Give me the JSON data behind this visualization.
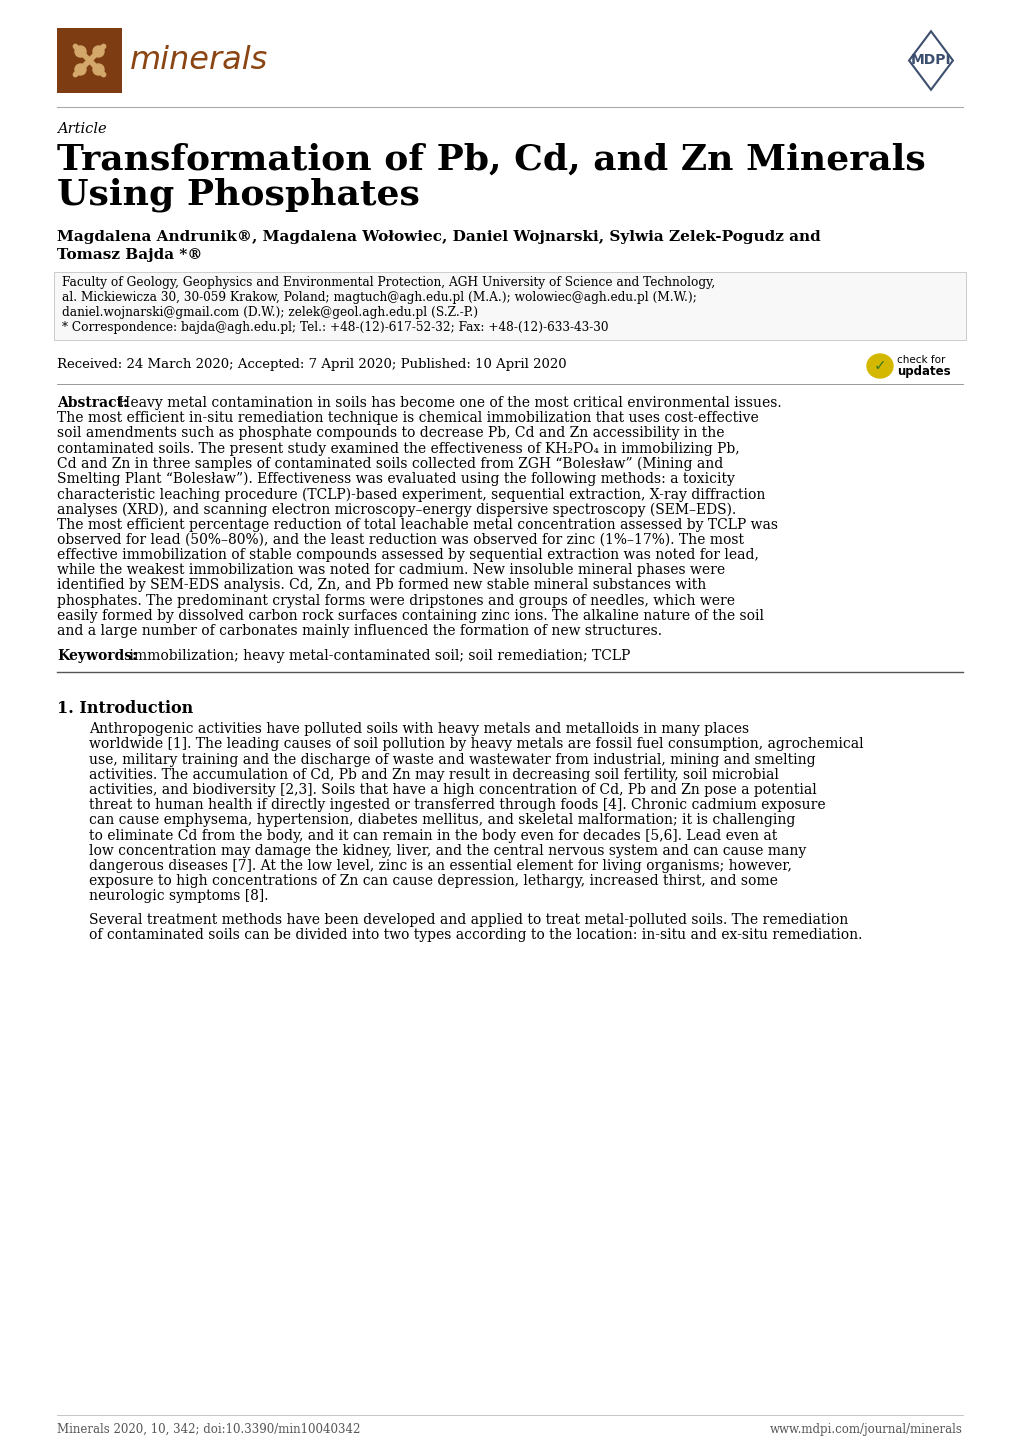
{
  "page_bg": "#ffffff",
  "lm": 57,
  "rm": 963,
  "title_line1": "Transformation of Pb, Cd, and Zn Minerals",
  "title_line2": "Using Phosphates",
  "article_label": "Article",
  "author_line1": "Magdalena Andrunik®, Magdalena Wołowiec, Daniel Wojnarski, Sylwia Zelek-Pogudz and",
  "author_line2": "Tomasz Bajda *®",
  "affiliation_lines": [
    "Faculty of Geology, Geophysics and Environmental Protection, AGH University of Science and Technology,",
    "al. Mickiewicza 30, 30-059 Krakow, Poland; magtuch@agh.edu.pl (M.A.); wolowiec@agh.edu.pl (M.W.);",
    "daniel.wojnarski@gmail.com (D.W.); zelek@geol.agh.edu.pl (S.Z.-P.)",
    "* Correspondence: bajda@agh.edu.pl; Tel.: +48-(12)-617-52-32; Fax: +48-(12)-633-43-30"
  ],
  "dates_line": "Received: 24 March 2020; Accepted: 7 April 2020; Published: 10 April 2020",
  "abstract_bold": "Abstract:",
  "abstract_rest": " Heavy metal contamination in soils has become one of the most critical environmental issues. The most efficient in-situ remediation technique is chemical immobilization that uses cost-effective soil amendments such as phosphate compounds to decrease Pb, Cd and Zn accessibility in the contaminated soils. The present study examined the effectiveness of KH₂PO₄ in immobilizing Pb, Cd and Zn in three samples of contaminated soils collected from ZGH “Bolesław” (Mining and Smelting Plant “Bolesław”). Effectiveness was evaluated using the following methods: a toxicity characteristic leaching procedure (TCLP)-based experiment, sequential extraction, X-ray diffraction analyses (XRD), and scanning electron microscopy–energy dispersive spectroscopy (SEM–EDS). The most efficient percentage reduction of total leachable metal concentration assessed by TCLP was observed for lead (50%–80%), and the least reduction was observed for zinc (1%–17%). The most effective immobilization of stable compounds assessed by sequential extraction was noted for lead, while the weakest immobilization was noted for cadmium. New insoluble mineral phases were identified by SEM-EDS analysis. Cd, Zn, and Pb formed new stable mineral substances with phosphates. The predominant crystal forms were dripstones and groups of needles, which were easily formed by dissolved carbon rock surfaces containing zinc ions. The alkaline nature of the soil and a large number of carbonates mainly influenced the formation of new structures.",
  "abstract_lines": [
    "Abstract: Heavy metal contamination in soils has become one of the most critical environmental issues.",
    "The most efficient in-situ remediation technique is chemical immobilization that uses cost-effective",
    "soil amendments such as phosphate compounds to decrease Pb, Cd and Zn accessibility in the",
    "contaminated soils. The present study examined the effectiveness of KH₂PO₄ in immobilizing Pb,",
    "Cd and Zn in three samples of contaminated soils collected from ZGH “Bolesław” (Mining and",
    "Smelting Plant “Bolesław”). Effectiveness was evaluated using the following methods: a toxicity",
    "characteristic leaching procedure (TCLP)-based experiment, sequential extraction, X-ray diffraction",
    "analyses (XRD), and scanning electron microscopy–energy dispersive spectroscopy (SEM–EDS).",
    "The most efficient percentage reduction of total leachable metal concentration assessed by TCLP was",
    "observed for lead (50%–80%), and the least reduction was observed for zinc (1%–17%). The most",
    "effective immobilization of stable compounds assessed by sequential extraction was noted for lead,",
    "while the weakest immobilization was noted for cadmium. New insoluble mineral phases were",
    "identified by SEM-EDS analysis. Cd, Zn, and Pb formed new stable mineral substances with",
    "phosphates. The predominant crystal forms were dripstones and groups of needles, which were",
    "easily formed by dissolved carbon rock surfaces containing zinc ions. The alkaline nature of the soil",
    "and a large number of carbonates mainly influenced the formation of new structures."
  ],
  "keywords_bold": "Keywords:",
  "keywords_rest": " immobilization; heavy metal-contaminated soil; soil remediation; TCLP",
  "section_title": "1. Introduction",
  "intro1_lines": [
    "Anthropogenic activities have polluted soils with heavy metals and metalloids in many places",
    "worldwide [1]. The leading causes of soil pollution by heavy metals are fossil fuel consumption, agrochemical",
    "use, military training and the discharge of waste and wastewater from industrial, mining and smelting",
    "activities. The accumulation of Cd, Pb and Zn may result in decreasing soil fertility, soil microbial",
    "activities, and biodiversity [2,3]. Soils that have a high concentration of Cd, Pb and Zn pose a potential",
    "threat to human health if directly ingested or transferred through foods [4]. Chronic cadmium exposure",
    "can cause emphysema, hypertension, diabetes mellitus, and skeletal malformation; it is challenging",
    "to eliminate Cd from the body, and it can remain in the body even for decades [5,6]. Lead even at",
    "low concentration may damage the kidney, liver, and the central nervous system and can cause many",
    "dangerous diseases [7]. At the low level, zinc is an essential element for living organisms; however,",
    "exposure to high concentrations of Zn can cause depression, lethargy, increased thirst, and some",
    "neurologic symptoms [8]."
  ],
  "intro2_lines": [
    "Several treatment methods have been developed and applied to treat metal-polluted soils. The remediation",
    "of contaminated soils can be divided into two types according to the location: in-situ and ex-situ remediation."
  ],
  "footer_left": "Minerals 2020, 10, 342; doi:10.3390/min10040342",
  "footer_right": "www.mdpi.com/journal/minerals",
  "logo_brown": "#7d3c12",
  "logo_text_color": "#8B4513",
  "mdpi_color": "#3d4f6e",
  "line_color_header": "#aaaaaa",
  "line_color_hr": "#555555",
  "text_color": "#000000",
  "footer_color": "#555555"
}
